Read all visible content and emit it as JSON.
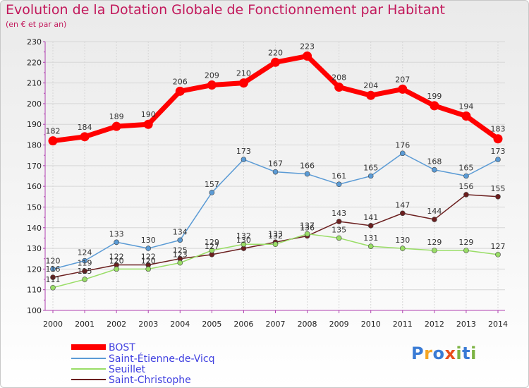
{
  "title": "Evolution de la Dotation Globale de Fonctionnement par Habitant",
  "subtitle": "(en € et par an)",
  "logo": {
    "text": "Proxiti",
    "colors": [
      "#3a7bd5",
      "#f5a623",
      "#3a7bd5",
      "#e94e1b",
      "#7cb342",
      "#3a7bd5",
      "#7cb342"
    ]
  },
  "chart_data": {
    "type": "line",
    "title": "Evolution de la Dotation Globale de Fonctionnement par Habitant",
    "subtitle": "(en € et par an)",
    "xlabel": "",
    "ylabel": "",
    "x": [
      "2000",
      "2001",
      "2002",
      "2003",
      "2004",
      "2005",
      "2006",
      "2007",
      "2008",
      "2009",
      "2010",
      "2011",
      "2012",
      "2013",
      "2014"
    ],
    "ylim": [
      100,
      230
    ],
    "yticks": [
      "100",
      "110",
      "120",
      "130",
      "140",
      "150",
      "160",
      "170",
      "180",
      "190",
      "200",
      "210",
      "220",
      "230"
    ],
    "grid": true,
    "legend_position": "bottom-left",
    "series": [
      {
        "name": "BOST",
        "color": "#ff0000",
        "values": [
          182,
          184,
          189,
          190,
          206,
          209,
          210,
          220,
          223,
          208,
          204,
          207,
          199,
          194,
          183
        ]
      },
      {
        "name": "Saint-Étienne-de-Vicq",
        "color": "#5b9bd5",
        "values": [
          120,
          124,
          133,
          130,
          134,
          157,
          173,
          167,
          166,
          161,
          165,
          176,
          168,
          165,
          173
        ]
      },
      {
        "name": "Seuillet",
        "color": "#99dd66",
        "values": [
          111,
          115,
          120,
          120,
          123,
          129,
          132,
          132,
          137,
          135,
          131,
          130,
          129,
          129,
          127
        ]
      },
      {
        "name": "Saint-Christophe",
        "color": "#6b1f1f",
        "values": [
          116,
          119,
          122,
          122,
          125,
          127,
          130,
          133,
          136,
          143,
          141,
          147,
          144,
          156,
          155
        ]
      }
    ]
  }
}
